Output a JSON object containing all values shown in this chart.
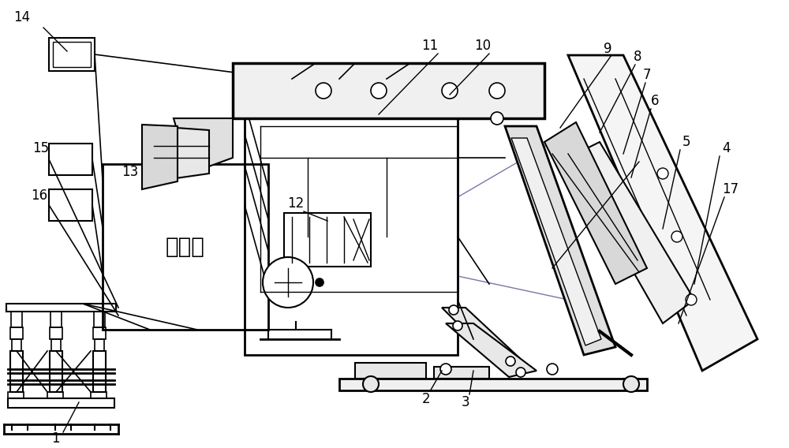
{
  "bg_color": "#ffffff",
  "lc": "#000000",
  "label_fontsize": 12,
  "chinese_fontsize": 20,
  "controller_text": "控制器",
  "fig_w": 10.0,
  "fig_h": 5.68,
  "dpi": 100
}
